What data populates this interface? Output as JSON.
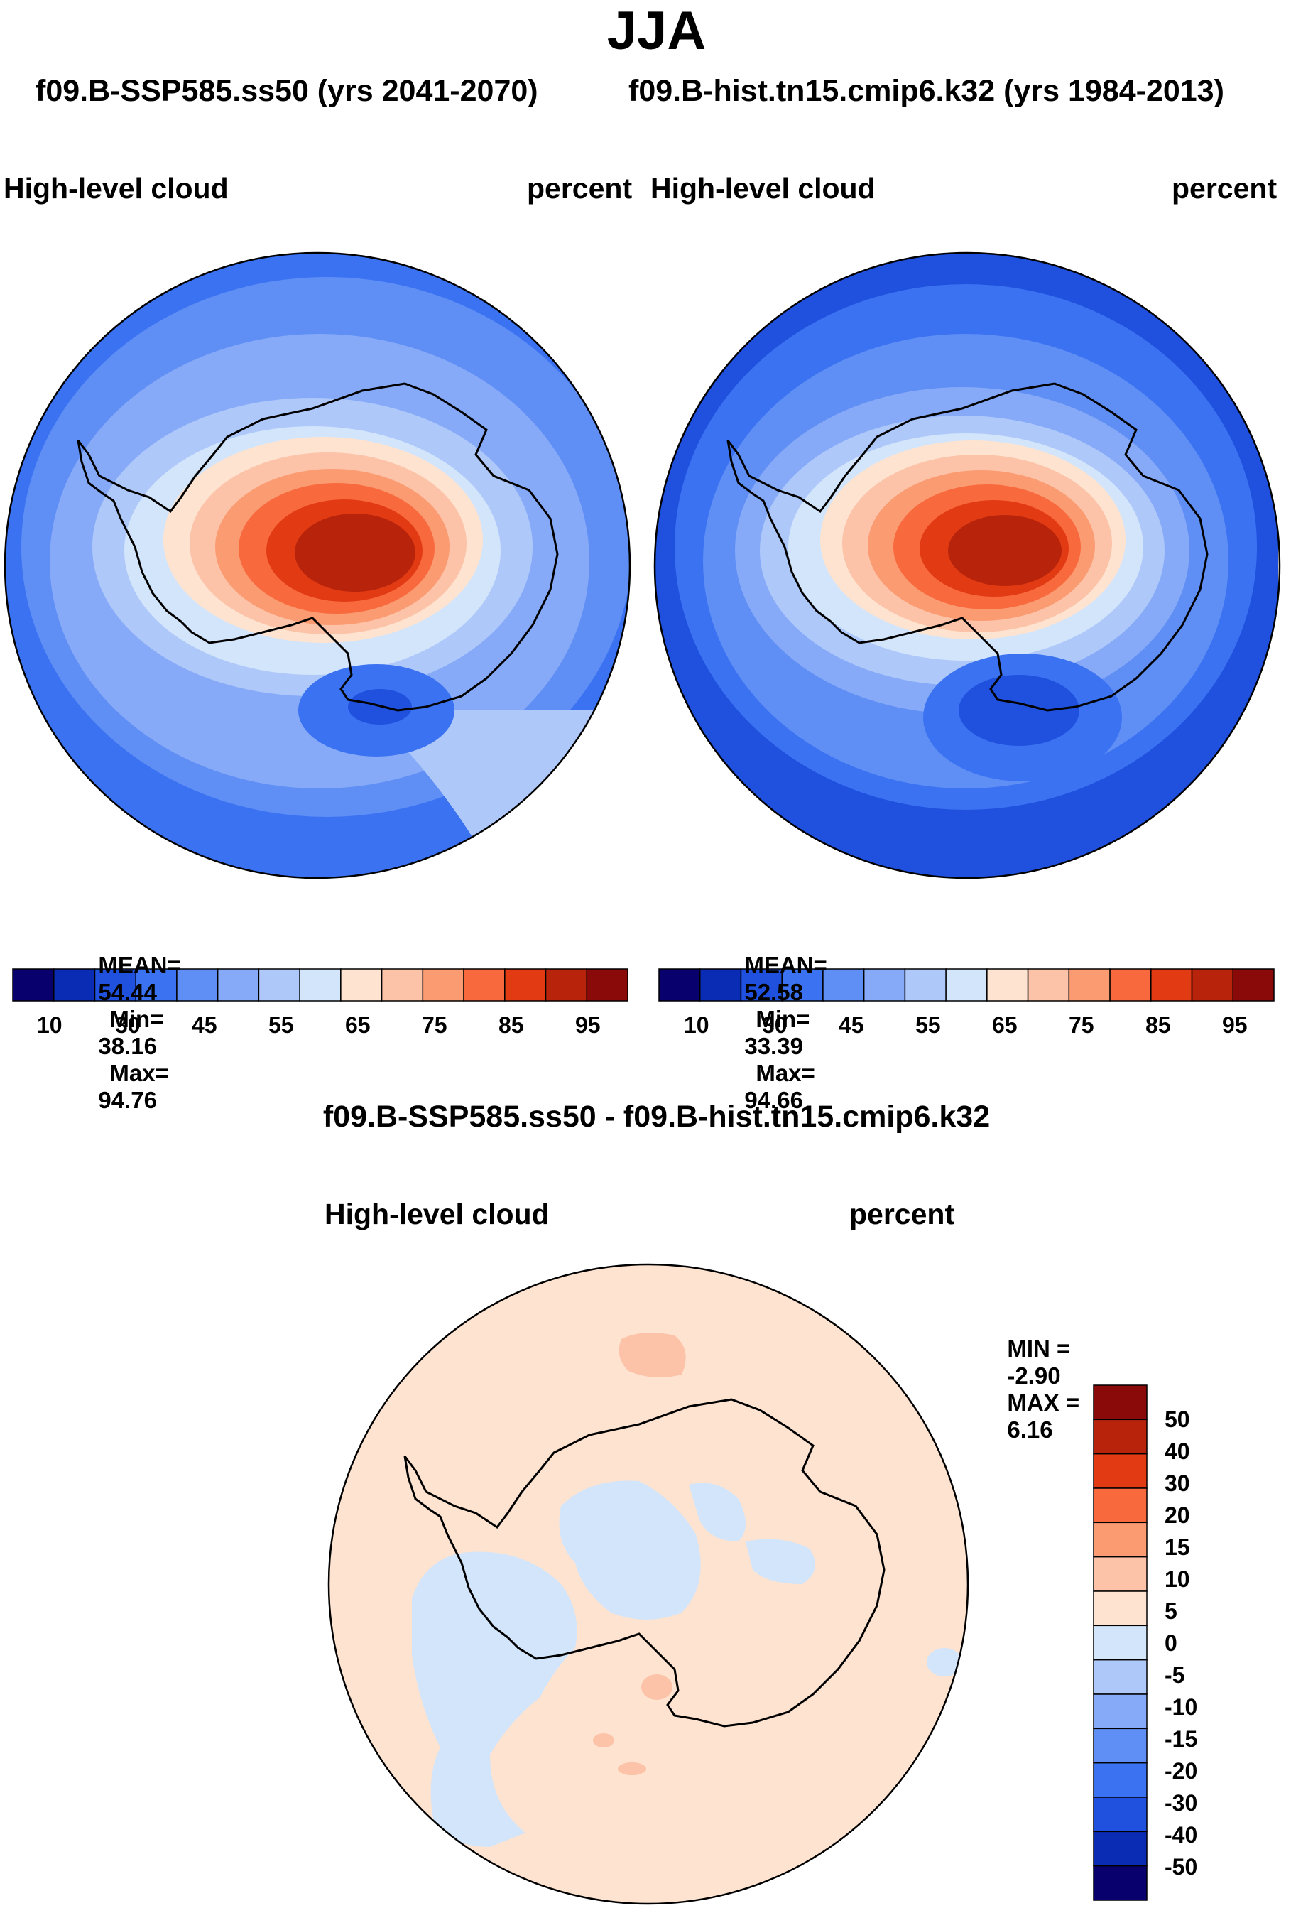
{
  "title": "JJA",
  "subtitle_left": "f09.B-SSP585.ss50 (yrs 2041-2070)",
  "subtitle_right": "f09.B-hist.tn15.cmip6.k32 (yrs 1984-2013)",
  "panels": [
    {
      "variable": "High-level cloud",
      "units": "percent",
      "stats": {
        "mean_label": "MEAN=",
        "mean": "54.44",
        "min_label": "Min=",
        "min": "38.16",
        "max_label": "Max=",
        "max": "94.76"
      }
    },
    {
      "variable": "High-level cloud",
      "units": "percent",
      "stats": {
        "mean_label": "MEAN=",
        "mean": "52.58",
        "min_label": "Min=",
        "min": "33.39",
        "max_label": "Max=",
        "max": "94.66"
      }
    }
  ],
  "colorbar_abs": {
    "colors": [
      "#08006c",
      "#0a2bb4",
      "#1f50de",
      "#3a72f2",
      "#5f8ef5",
      "#86aaf8",
      "#aec8fa",
      "#d3e5fb",
      "#fde3d0",
      "#fcc3a8",
      "#fb9b72",
      "#f86a3e",
      "#e23b14",
      "#b8240b",
      "#8a0a0a"
    ],
    "tick_labels": [
      "10",
      "30",
      "45",
      "55",
      "65",
      "75",
      "85",
      "95"
    ]
  },
  "diff": {
    "title": "f09.B-SSP585.ss50 - f09.B-hist.tn15.cmip6.k32",
    "variable": "High-level cloud",
    "units": "percent",
    "min_label": "MIN =",
    "min": "-2.90",
    "max_label": "MAX =",
    "max": "6.16"
  },
  "colorbar_diff": {
    "colors_top_to_bottom": [
      "#8a0a0a",
      "#b8240b",
      "#e23b14",
      "#f86a3e",
      "#fb9b72",
      "#fcc3a8",
      "#fde3d0",
      "#d3e5fb",
      "#aec8fa",
      "#86aaf8",
      "#5f8ef5",
      "#3a72f2",
      "#1f50de",
      "#0a2bb4",
      "#08006c"
    ],
    "tick_labels": [
      "50",
      "40",
      "30",
      "20",
      "15",
      "10",
      "5",
      "0",
      "-5",
      "-10",
      "-15",
      "-20",
      "-30",
      "-40",
      "-50"
    ]
  },
  "colors": {
    "diff_positive": "#fde3d0",
    "diff_negative": "#d3e5fb",
    "diff_positive_5": "#fcc3a8",
    "outline": "#000000"
  }
}
